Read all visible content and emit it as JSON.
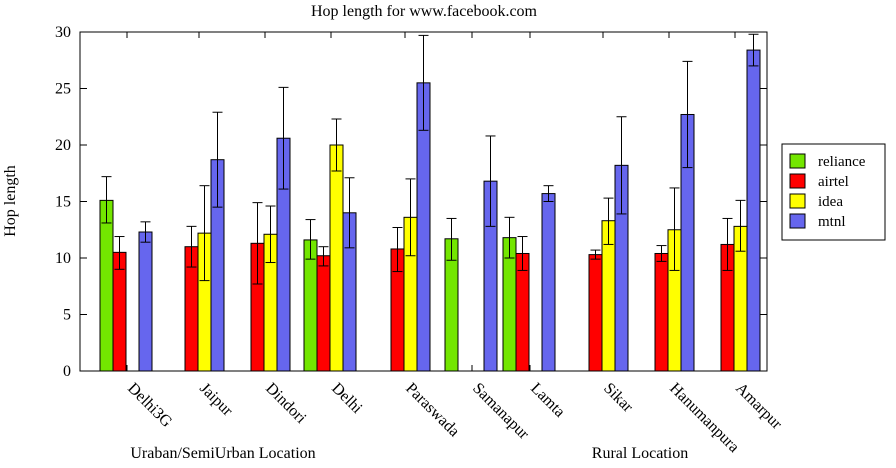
{
  "chart_data": {
    "type": "bar",
    "title": "Hop length for www.facebook.com",
    "ylabel": "Hop length",
    "xlabel": "",
    "ylim": [
      0,
      30
    ],
    "yticks": [
      0,
      5,
      10,
      15,
      20,
      25,
      30
    ],
    "categories": [
      "Delhi3G",
      "Jaipur",
      "Dindori",
      "Delhi",
      "Paraswada",
      "Samanapur",
      "Lamta",
      "Sikar",
      "Hanumanpura",
      "Amarpur"
    ],
    "group_labels": [
      "Uraban/SemiUrban Location",
      "Rural Location"
    ],
    "legend_position": "right",
    "series": [
      {
        "name": "reliance",
        "color": "#73e600",
        "values": [
          15.1,
          null,
          null,
          11.6,
          null,
          11.7,
          11.8,
          null,
          null,
          null
        ],
        "err_low": [
          13.1,
          null,
          null,
          9.9,
          null,
          9.8,
          10.0,
          null,
          null,
          null
        ],
        "err_high": [
          17.2,
          null,
          null,
          13.4,
          null,
          13.5,
          13.6,
          null,
          null,
          null
        ]
      },
      {
        "name": "airtel",
        "color": "#ff0000",
        "values": [
          10.5,
          11.0,
          11.3,
          10.2,
          10.8,
          null,
          10.4,
          10.3,
          10.4,
          11.2
        ],
        "err_low": [
          9.0,
          9.2,
          7.7,
          9.3,
          8.8,
          null,
          8.9,
          9.9,
          9.7,
          8.9
        ],
        "err_high": [
          11.9,
          12.8,
          14.9,
          11.0,
          12.7,
          null,
          11.9,
          10.7,
          11.1,
          13.5
        ]
      },
      {
        "name": "idea",
        "color": "#ffff00",
        "values": [
          null,
          12.2,
          12.1,
          20.0,
          13.6,
          null,
          null,
          13.3,
          12.5,
          12.8
        ],
        "err_low": [
          null,
          8.0,
          9.6,
          17.7,
          10.2,
          null,
          null,
          11.2,
          8.9,
          10.6
        ],
        "err_high": [
          null,
          16.4,
          14.6,
          22.3,
          17.0,
          null,
          null,
          15.3,
          16.2,
          15.1
        ]
      },
      {
        "name": "mtnl",
        "color": "#6666ee",
        "values": [
          12.3,
          18.7,
          20.6,
          14.0,
          25.5,
          16.8,
          15.7,
          18.2,
          22.7,
          28.4
        ],
        "err_low": [
          11.4,
          14.5,
          16.1,
          10.9,
          21.3,
          12.8,
          15.0,
          13.9,
          18.0,
          27.0
        ],
        "err_high": [
          13.2,
          22.9,
          25.1,
          17.1,
          29.7,
          20.8,
          16.4,
          22.5,
          27.4,
          29.8
        ]
      }
    ]
  }
}
